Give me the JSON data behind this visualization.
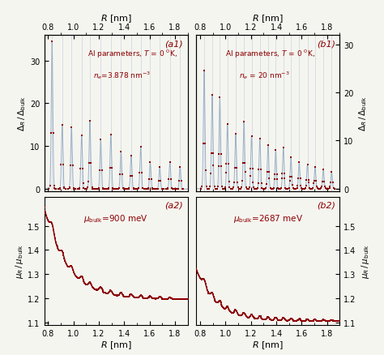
{
  "xlim": [
    0.77,
    1.9
  ],
  "xticks": [
    0.8,
    1.0,
    1.2,
    1.4,
    1.6,
    1.8
  ],
  "xticklabels": [
    "0.8",
    "1.0",
    "1.2",
    "1.4",
    "1.6",
    "1.8"
  ],
  "a1_ylim": [
    -0.5,
    36
  ],
  "a1_yticks": [
    0,
    10,
    20,
    30
  ],
  "b1_ylim": [
    -0.5,
    32
  ],
  "b1_yticks": [
    0,
    10,
    20,
    30
  ],
  "a2_ylim": [
    1.09,
    1.62
  ],
  "a2_yticks": [
    1.1,
    1.2,
    1.3,
    1.4,
    1.5
  ],
  "b2_ylim": [
    1.09,
    1.62
  ],
  "b2_yticks": [
    1.1,
    1.2,
    1.3,
    1.4,
    1.5
  ],
  "dark_red": "#8B0000",
  "light_blue": "#9ab0c8",
  "bg_color": "#f5f5f0"
}
